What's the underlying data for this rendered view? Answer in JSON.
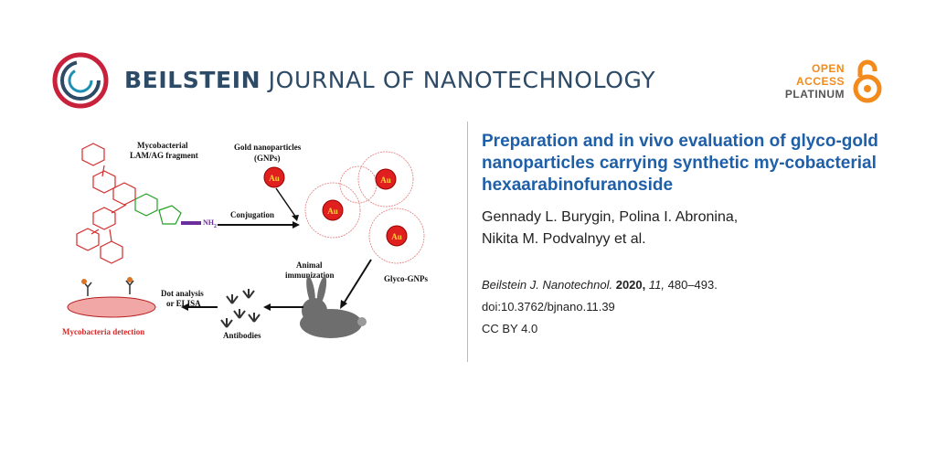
{
  "header": {
    "journal_name_bold": "BEILSTEIN",
    "journal_name_rest": " JOURNAL OF NANOTECHNOLOGY",
    "open_access": [
      "OPEN",
      "ACCESS",
      "PLATINUM"
    ],
    "colors": {
      "brand": "#2d4a66",
      "accent": "#c8213b",
      "oa": "#f28b1c"
    }
  },
  "article": {
    "title": "Preparation and in vivo evaluation of glyco-gold nanoparticles carrying synthetic my-cobacterial hexaarabinofuranoside",
    "authors_line1": "Gennady L. Burygin, Polina I. Abronina,",
    "authors_line2": "Nikita M. Podvalnyy et al.",
    "journal_abbrev": "Beilstein J. Nanotechnol.",
    "year": "2020,",
    "volume": "11,",
    "pages": "480–493.",
    "doi": "doi:10.3762/bjnano.11.39",
    "license": "CC BY 4.0"
  },
  "figure": {
    "label_fragment_1": "Mycobacterial",
    "label_fragment_2": "LAM/AG fragment",
    "label_gnp_1": "Gold nanoparticles",
    "label_gnp_2": "(GNPs)",
    "label_conjugation": "Conjugation",
    "label_glyco": "Glyco-GNPs",
    "label_animal_1": "Animal",
    "label_animal_2": "immunization",
    "label_dot_1": "Dot analysis",
    "label_dot_2": "or ELISA",
    "label_antibodies": "Antibodies",
    "label_detection": "Mycobacteria detection",
    "label_au": "Au",
    "label_nh2": "NH",
    "label_nh2_sub": "2"
  }
}
